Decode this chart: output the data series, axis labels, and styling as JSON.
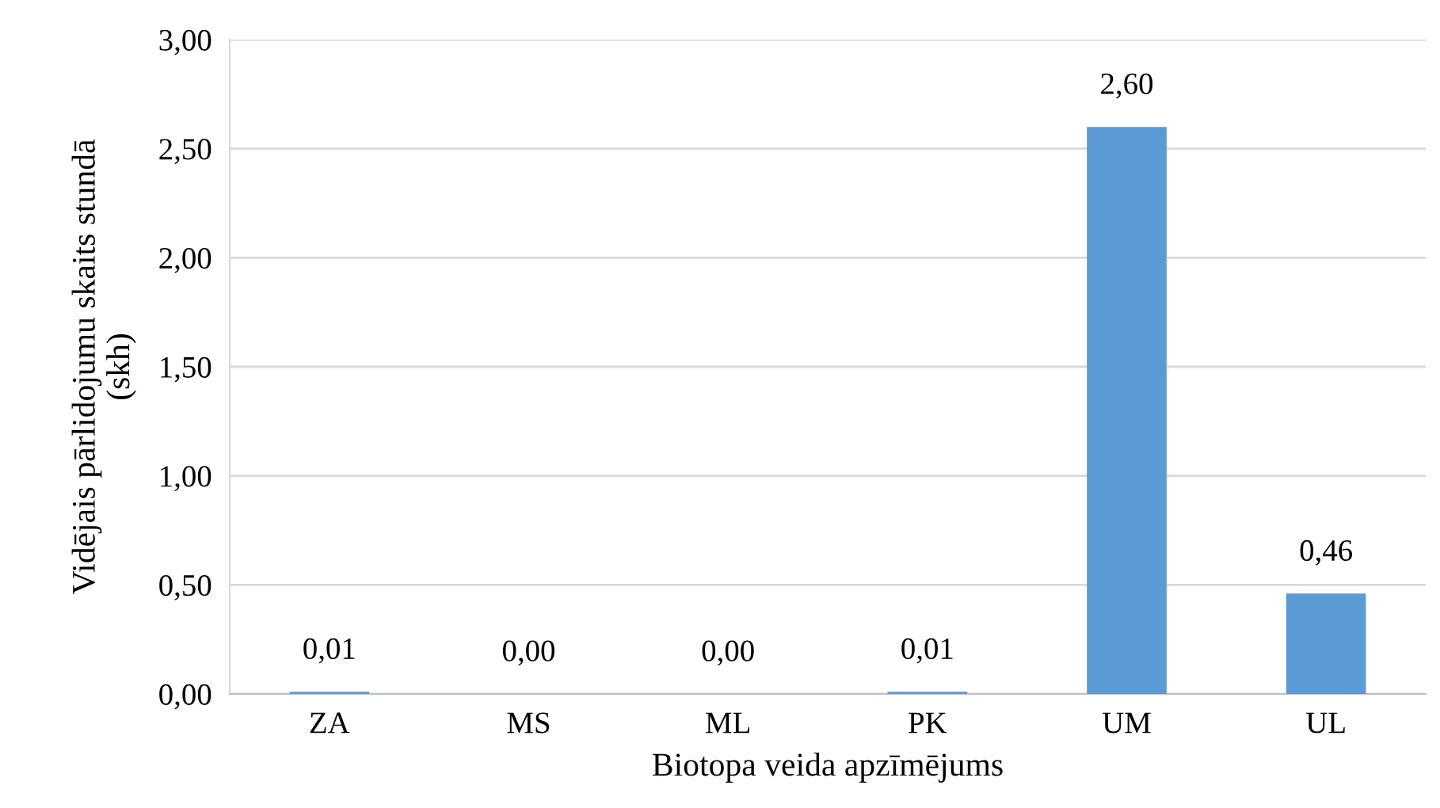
{
  "chart_data": {
    "type": "bar",
    "xlabel": "Biotopa veida apzīmējums",
    "ylabel": "Vidējais pārlidojumu skaits stundā\n(skh)",
    "categories": [
      "ZA",
      "MS",
      "ML",
      "PK",
      "UM",
      "UL"
    ],
    "values": [
      0.01,
      0.0,
      0.0,
      0.01,
      2.6,
      0.46
    ],
    "value_labels": [
      "0,01",
      "0,00",
      "0,00",
      "0,01",
      "2,60",
      "0,46"
    ],
    "color": "#5b9bd5",
    "ylim": [
      0,
      3
    ],
    "yticks": [
      {
        "value": 0,
        "label": "0,00"
      },
      {
        "value": 0.5,
        "label": "0,50"
      },
      {
        "value": 1,
        "label": "1,00"
      },
      {
        "value": 1.5,
        "label": "1,50"
      },
      {
        "value": 2,
        "label": "2,00"
      },
      {
        "value": 2.5,
        "label": "2,50"
      },
      {
        "value": 3,
        "label": "3,00"
      }
    ],
    "grid": "y"
  }
}
